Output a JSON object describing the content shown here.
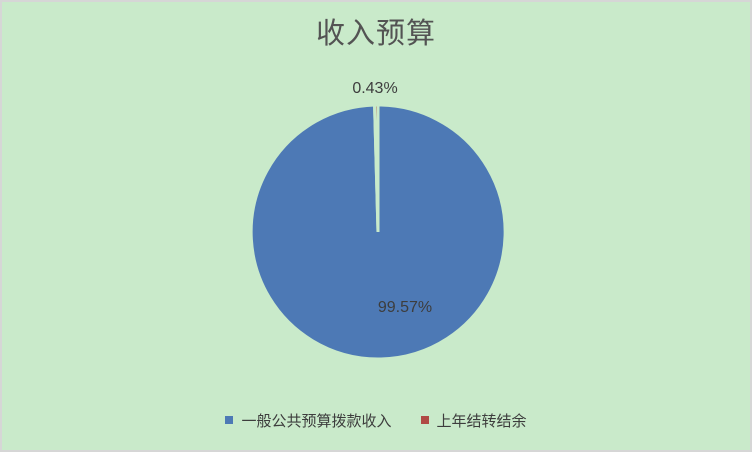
{
  "window": {
    "background": "#c9eaca",
    "border_color": "#d6d6d6"
  },
  "chart_data": {
    "type": "pie",
    "title": "收入预算",
    "categories": [
      "一般公共预算拨款收入",
      "上年结转结余"
    ],
    "values": [
      99.57,
      0.43
    ],
    "colors": [
      "#4d79b5",
      "#b04a44"
    ],
    "data_labels": [
      "99.57%",
      "0.43%"
    ],
    "start_angle_deg": 0,
    "direction": "clockwise",
    "legend_position": "bottom",
    "grid": false,
    "title_color": "#535353",
    "label_color": "#3d3d3d"
  }
}
